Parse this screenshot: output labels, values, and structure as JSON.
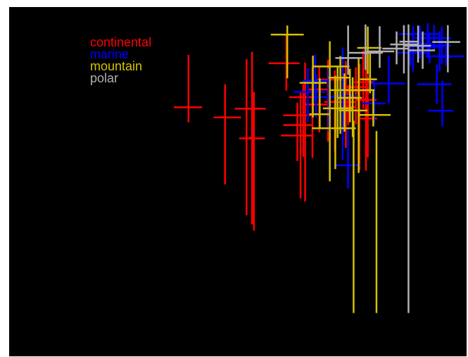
{
  "chart_data": {
    "type": "scatter",
    "title": "",
    "xlabel": "",
    "ylabel": "",
    "xlim": [
      0,
      100
    ],
    "ylim": [
      0,
      100
    ],
    "grid": false,
    "legend_position": "top-left",
    "background": "#000000",
    "series": [
      {
        "name": "continental",
        "color": "#ff0000",
        "points": [
          {
            "x": 39.2,
            "y": 71.3,
            "xerr": [
              36.0,
              42.2
            ],
            "yerr": [
              67.0,
              86.3
            ]
          },
          {
            "x": 47.2,
            "y": 68.4,
            "xerr": [
              44.7,
              50.7
            ],
            "yerr": [
              49.2,
              77.9
            ]
          },
          {
            "x": 51.9,
            "y": 70.9,
            "xerr": [
              49.3,
              56.1
            ],
            "yerr": [
              40.4,
              85.1
            ]
          },
          {
            "x": 53.5,
            "y": 62.4,
            "xerr": [
              50.3,
              55.9
            ],
            "yerr": [
              36.0,
              75.7
            ]
          },
          {
            "x": 53.1,
            "y": 62.6,
            "xerr": [
              52.5,
              53.7
            ],
            "yerr": [
              37.8,
              87.2
            ]
          },
          {
            "x": 60.6,
            "y": 83.9,
            "xerr": [
              56.7,
              63.5
            ],
            "yerr": [
              76.1,
              91.9
            ]
          },
          {
            "x": 63.7,
            "y": 66.2,
            "xerr": [
              59.9,
              66.1
            ],
            "yerr": [
              45.2,
              75.5
            ]
          },
          {
            "x": 63.0,
            "y": 63.2,
            "xerr": [
              59.4,
              66.4
            ],
            "yerr": [
              55.9,
              72.6
            ]
          },
          {
            "x": 64.3,
            "y": 69.0,
            "xerr": [
              59.9,
              66.6
            ],
            "yerr": [
              57.1,
              77.9
            ]
          },
          {
            "x": 64.7,
            "y": 74.2,
            "xerr": [
              61.2,
              67.5
            ],
            "yerr": [
              44.3,
              84.1
            ]
          },
          {
            "x": 66.3,
            "y": 72.1,
            "xerr": [
              64.5,
              70.4
            ],
            "yerr": [
              56.8,
              82.9
            ]
          },
          {
            "x": 67.8,
            "y": 76.4,
            "xerr": [
              65.2,
              70.2
            ],
            "yerr": [
              64.1,
              82.8
            ]
          },
          {
            "x": 69.7,
            "y": 79.2,
            "xerr": [
              67.1,
              73.2
            ],
            "yerr": [
              61.5,
              84.9
            ]
          },
          {
            "x": 71.2,
            "y": 72.8,
            "xerr": [
              68.9,
              75.8
            ],
            "yerr": [
              58.7,
              81.9
            ]
          },
          {
            "x": 74.1,
            "y": 71.4,
            "xerr": [
              72.3,
              75.9
            ],
            "yerr": [
              66.2,
              77.6
            ]
          },
          {
            "x": 73.6,
            "y": 74.3,
            "xerr": [
              71.6,
              75.8
            ],
            "yerr": [
              59.7,
              84.5
            ]
          },
          {
            "x": 75.8,
            "y": 77.1,
            "xerr": [
              73.8,
              78.1
            ],
            "yerr": [
              66.4,
              82.7
            ]
          },
          {
            "x": 76.6,
            "y": 76.1,
            "xerr": [
              75.0,
              78.7
            ],
            "yerr": [
              53.3,
              83.7
            ]
          },
          {
            "x": 77.4,
            "y": 78.5,
            "xerr": [
              75.4,
              79.5
            ],
            "yerr": [
              70.9,
              87.6
            ]
          },
          {
            "x": 78.0,
            "y": 73.4,
            "xerr": [
              75.6,
              80.3
            ],
            "yerr": [
              53.1,
              86.7
            ]
          },
          {
            "x": 78.4,
            "y": 68.1,
            "xerr": [
              76.5,
              80.4
            ],
            "yerr": [
              56.9,
              80.6
            ]
          }
        ]
      },
      {
        "name": "marine",
        "color": "#0000ff",
        "points": [
          {
            "x": 65.3,
            "y": 75.7,
            "xerr": [
              62.2,
              69.1
            ],
            "yerr": [
              67.2,
              82.5
            ]
          },
          {
            "x": 66.9,
            "y": 78.9,
            "xerr": [
              64.1,
              70.4
            ],
            "yerr": [
              72.3,
              86.5
            ]
          },
          {
            "x": 67.1,
            "y": 74.3,
            "xerr": [
              66.4,
              67.8
            ],
            "yerr": [
              68.3,
              80.6
            ]
          },
          {
            "x": 69.8,
            "y": 74.2,
            "xerr": [
              67.1,
              72.6
            ],
            "yerr": [
              64.4,
              82.4
            ]
          },
          {
            "x": 72.9,
            "y": 74.6,
            "xerr": [
              70.8,
              75.9
            ],
            "yerr": [
              56.3,
              88.4
            ]
          },
          {
            "x": 74.1,
            "y": 54.7,
            "xerr": [
              71.3,
              76.8
            ],
            "yerr": [
              48.0,
              65.1
            ]
          },
          {
            "x": 79.8,
            "y": 72.4,
            "xerr": [
              77.2,
              82.3
            ],
            "yerr": [
              66.5,
              79.4
            ]
          },
          {
            "x": 83.0,
            "y": 78.1,
            "xerr": [
              79.0,
              86.6
            ],
            "yerr": [
              72.4,
              86.1
            ]
          },
          {
            "x": 87.7,
            "y": 86.9,
            "xerr": [
              84.8,
              91.5
            ],
            "yerr": [
              83.2,
              90.6
            ]
          },
          {
            "x": 88.3,
            "y": 92.3,
            "xerr": [
              85.2,
              93.9
            ],
            "yerr": [
              81.5,
              94.7
            ]
          },
          {
            "x": 89.8,
            "y": 89.5,
            "xerr": [
              87.3,
              92.3
            ],
            "yerr": [
              85.3,
              94.6
            ]
          },
          {
            "x": 91.5,
            "y": 91.1,
            "xerr": [
              88.6,
              93.6
            ],
            "yerr": [
              85.4,
              95.4
            ]
          },
          {
            "x": 91.9,
            "y": 88.6,
            "xerr": [
              89.0,
              94.9
            ],
            "yerr": [
              83.9,
              92.7
            ]
          },
          {
            "x": 92.9,
            "y": 91.1,
            "xerr": [
              90.5,
              96.6
            ],
            "yerr": [
              87.8,
              94.8
            ]
          },
          {
            "x": 94.1,
            "y": 89.0,
            "xerr": [
              91.4,
              96.6
            ],
            "yerr": [
              81.6,
              93.1
            ]
          },
          {
            "x": 94.6,
            "y": 85.9,
            "xerr": [
              91.1,
              99.5
            ],
            "yerr": [
              83.6,
              94.5
            ]
          },
          {
            "x": 95.5,
            "y": 85.7,
            "xerr": [
              94.3,
              96.8
            ],
            "yerr": [
              83.3,
              90.0
            ]
          },
          {
            "x": 93.5,
            "y": 77.9,
            "xerr": [
              89.2,
              96.7
            ],
            "yerr": [
              72.3,
              83.6
            ]
          },
          {
            "x": 94.7,
            "y": 70.3,
            "xerr": [
              91.6,
              97.1
            ],
            "yerr": [
              65.8,
              78.9
            ]
          }
        ]
      },
      {
        "name": "mountain",
        "color": "#d4c000",
        "points": [
          {
            "x": 60.8,
            "y": 92.1,
            "xerr": [
              57.2,
              64.4
            ],
            "yerr": [
              79.6,
              94.7
            ]
          },
          {
            "x": 66.4,
            "y": 78.3,
            "xerr": [
              63.5,
              69.4
            ],
            "yerr": [
              68.4,
              86.1
            ]
          },
          {
            "x": 67.9,
            "y": 69.3,
            "xerr": [
              65.6,
              69.9
            ],
            "yerr": [
              65.4,
              79.6
            ]
          },
          {
            "x": 70.1,
            "y": 83.0,
            "xerr": [
              66.3,
              74.4
            ],
            "yerr": [
              50.1,
              90.2
            ]
          },
          {
            "x": 71.3,
            "y": 65.3,
            "xerr": [
              66.2,
              75.8
            ],
            "yerr": [
              53.6,
              80.3
            ]
          },
          {
            "x": 71.8,
            "y": 71.0,
            "xerr": [
              68.6,
              74.9
            ],
            "yerr": [
              62.5,
              82.9
            ]
          },
          {
            "x": 72.4,
            "y": 79.8,
            "xerr": [
              69.8,
              74.5
            ],
            "yerr": [
              63.7,
              86.0
            ]
          },
          {
            "x": 73.3,
            "y": 76.2,
            "xerr": [
              70.0,
              76.6
            ],
            "yerr": [
              64.3,
              81.0
            ]
          },
          {
            "x": 74.5,
            "y": 74.0,
            "xerr": [
              72.0,
              77.1
            ],
            "yerr": [
              67.0,
              82.3
            ]
          },
          {
            "x": 75.1,
            "y": 70.4,
            "xerr": [
              72.1,
              78.3
            ],
            "yerr": [
              62.8,
              79.9
            ]
          },
          {
            "x": 76.4,
            "y": 76.2,
            "xerr": [
              74.6,
              79.9
            ],
            "yerr": [
              52.5,
              85.6
            ]
          },
          {
            "x": 75.3,
            "y": 67.0,
            "xerr": [
              75.2,
              75.4
            ],
            "yerr": [
              12.4,
              67.5
            ]
          },
          {
            "x": 78.4,
            "y": 88.3,
            "xerr": [
              76.1,
              81.4
            ],
            "yerr": [
              80.8,
              94.4
            ]
          },
          {
            "x": 78.9,
            "y": 79.3,
            "xerr": [
              76.7,
              80.4
            ],
            "yerr": [
              75.3,
              87.5
            ]
          },
          {
            "x": 79.6,
            "y": 69.1,
            "xerr": [
              76.3,
              83.4
            ],
            "yerr": [
              65.8,
              76.0
            ]
          },
          {
            "x": 80.3,
            "y": 64.0,
            "xerr": [
              80.2,
              80.4
            ],
            "yerr": [
              12.4,
              64.5
            ]
          }
        ]
      },
      {
        "name": "polar",
        "color": "#b0b0b0",
        "points": [
          {
            "x": 74.1,
            "y": 85.4,
            "xerr": [
              71.3,
              77.2
            ],
            "yerr": [
              80.6,
              94.7
            ]
          },
          {
            "x": 77.9,
            "y": 86.9,
            "xerr": [
              74.2,
              81.7
            ],
            "yerr": [
              82.0,
              95.0
            ]
          },
          {
            "x": 81.0,
            "y": 87.3,
            "xerr": [
              78.1,
              84.2
            ],
            "yerr": [
              82.6,
              94.5
            ]
          },
          {
            "x": 84.7,
            "y": 88.1,
            "xerr": [
              81.6,
              87.4
            ],
            "yerr": [
              83.6,
              93.0
            ]
          },
          {
            "x": 86.3,
            "y": 89.3,
            "xerr": [
              83.3,
              89.4
            ],
            "yerr": [
              81.0,
              94.8
            ]
          },
          {
            "x": 87.3,
            "y": 90.1,
            "xerr": [
              85.3,
              89.5
            ],
            "yerr": [
              12.4,
              95.0
            ]
          },
          {
            "x": 89.4,
            "y": 88.9,
            "xerr": [
              86.4,
              92.2
            ],
            "yerr": [
              84.1,
              94.7
            ]
          },
          {
            "x": 90.4,
            "y": 87.6,
            "xerr": [
              87.4,
              93.1
            ],
            "yerr": [
              82.3,
              93.0
            ]
          },
          {
            "x": 95.9,
            "y": 90.0,
            "xerr": [
              92.5,
              98.6
            ],
            "yerr": [
              81.3,
              94.8
            ]
          }
        ]
      }
    ]
  }
}
